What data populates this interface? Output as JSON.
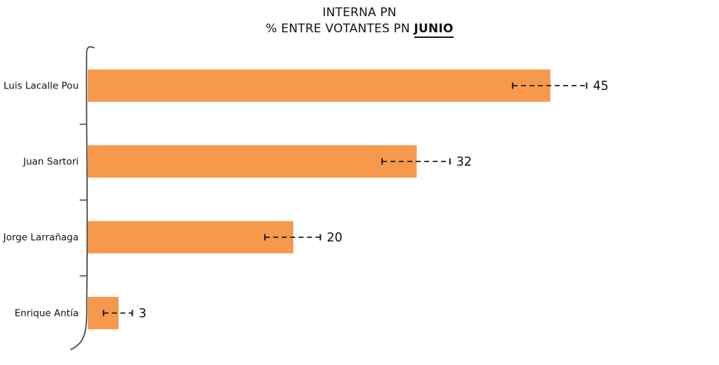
{
  "page": {
    "background": "#ffffff"
  },
  "title": {
    "line1": "INTERNA PN",
    "line2_prefix": "% ENTRE VOTANTES PN ",
    "line2_emphasis": "JUNIO"
  },
  "chart_data": {
    "type": "bar",
    "orientation": "horizontal",
    "style": "xkcd-handdrawn",
    "title": "INTERNA PN",
    "subtitle": "% ENTRE VOTANTES PN JUNIO",
    "subtitle_emphasis": "JUNIO",
    "categories": [
      "Luis Lacalle Pou",
      "Juan Sartori",
      "Jorge Larrañaga",
      "Enrique Antía"
    ],
    "values": [
      45,
      32,
      20,
      3
    ],
    "errors": [
      3.6,
      3.3,
      2.7,
      1.4
    ],
    "value_labels": [
      "45",
      "32",
      "20",
      "3"
    ],
    "xlim": [
      0,
      62
    ],
    "grid": false,
    "legend": null,
    "bar_color": "#F6994C",
    "axis_color": "#4a4a4a",
    "annotation_color": "#1a1a1a",
    "text_color": "#111111"
  }
}
